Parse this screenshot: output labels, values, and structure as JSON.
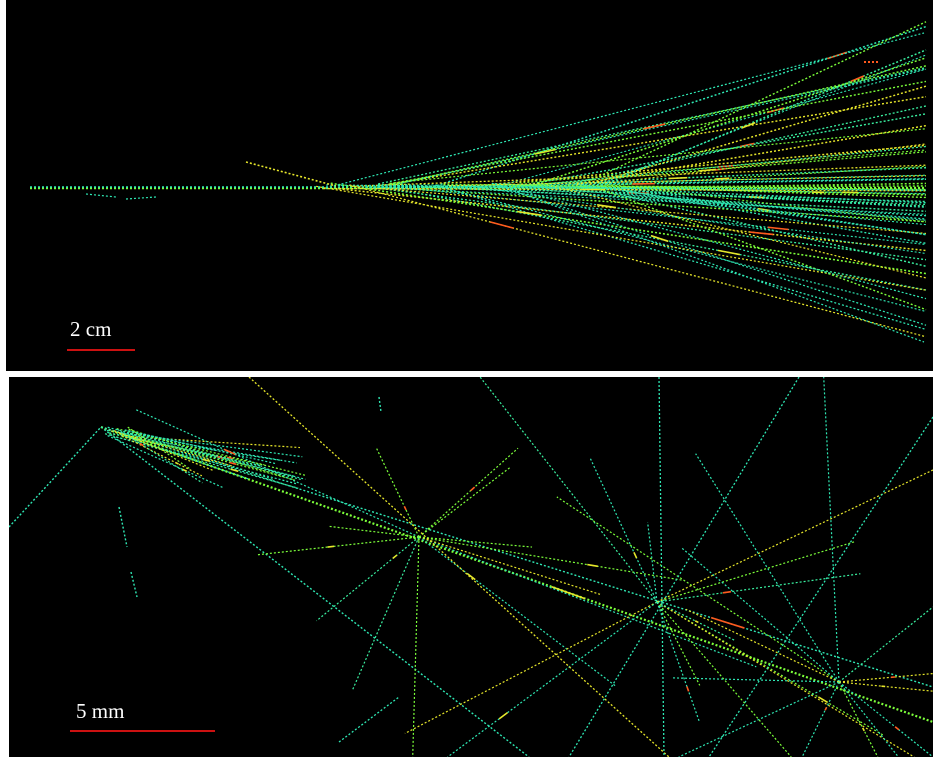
{
  "image": {
    "description_type": "particle shower track display",
    "background_color": "#000000",
    "track_colors": [
      "#2ee8b4",
      "#7cff3a",
      "#e6e62a",
      "#ff5a1e"
    ]
  },
  "panels": [
    {
      "id": "top",
      "scale_bar": {
        "label": "2 cm",
        "color": "#cc1111"
      }
    },
    {
      "id": "bottom",
      "scale_bar": {
        "label": "5 mm",
        "color": "#cc1111"
      }
    }
  ]
}
